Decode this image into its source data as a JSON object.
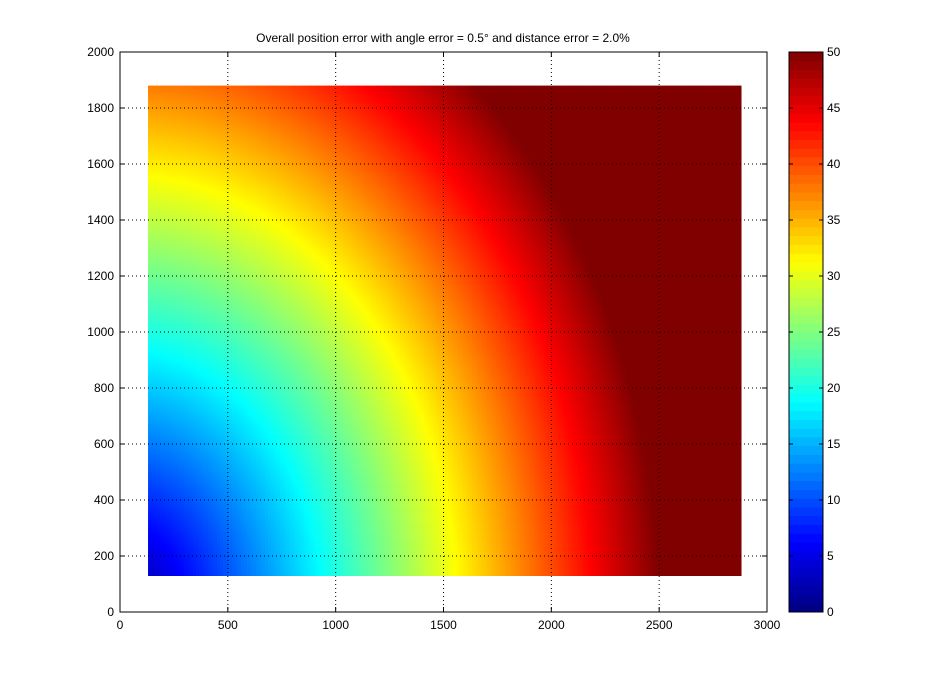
{
  "chart_data": {
    "type": "heatmap",
    "title": "Overall position error with angle error = 0.5° and distance error = 2.0%",
    "xlabel": "",
    "ylabel": "",
    "xlim": [
      0,
      3000
    ],
    "ylim": [
      0,
      2000
    ],
    "x_ticks": [
      "0",
      "500",
      "1000",
      "1500",
      "2000",
      "2500",
      "3000"
    ],
    "y_ticks": [
      "0",
      "200",
      "400",
      "600",
      "800",
      "1000",
      "1200",
      "1400",
      "1600",
      "1800",
      "2000"
    ],
    "grid": true,
    "data_extent": {
      "x": [
        130,
        2880
      ],
      "y": [
        130,
        1880
      ]
    },
    "colormap": "jet",
    "color_range": [
      0,
      50
    ],
    "colorbar_ticks": [
      "0",
      "5",
      "10",
      "15",
      "20",
      "25",
      "30",
      "35",
      "40",
      "45",
      "50"
    ],
    "value_model": "0.02 * sqrt(x^2 + y^2), saturating at 50",
    "sample_values": [
      {
        "x": 130,
        "y": 130,
        "value": 3.7
      },
      {
        "x": 700,
        "y": 130,
        "value": 14.2
      },
      {
        "x": 1400,
        "y": 130,
        "value": 28.1
      },
      {
        "x": 2250,
        "y": 130,
        "value": 45.1
      },
      {
        "x": 130,
        "y": 1400,
        "value": 28.1
      },
      {
        "x": 1300,
        "y": 1880,
        "value": 45.7
      },
      {
        "x": 2880,
        "y": 1880,
        "value": 50
      }
    ]
  }
}
